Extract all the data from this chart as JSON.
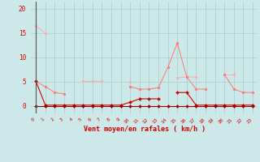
{
  "x": [
    0,
    1,
    2,
    3,
    4,
    5,
    6,
    7,
    8,
    9,
    10,
    11,
    12,
    13,
    14,
    15,
    16,
    17,
    18,
    19,
    20,
    21,
    22,
    23
  ],
  "line1_y": [
    16.5,
    15.0,
    null,
    null,
    null,
    5.2,
    5.2,
    5.2,
    null,
    null,
    5.0,
    null,
    null,
    null,
    null,
    5.8,
    6.0,
    6.0,
    null,
    null,
    6.5,
    6.5,
    null,
    null
  ],
  "line2_y": [
    5.1,
    4.0,
    2.8,
    2.5,
    null,
    null,
    null,
    null,
    null,
    null,
    4.0,
    3.5,
    3.5,
    3.8,
    8.0,
    13.0,
    6.0,
    3.5,
    3.5,
    null,
    6.5,
    3.5,
    2.8,
    2.8
  ],
  "line3_y": [
    5.1,
    0.2,
    0.2,
    0.2,
    0.2,
    0.2,
    0.2,
    0.2,
    0.2,
    0.2,
    0.8,
    1.5,
    1.5,
    1.5,
    null,
    2.8,
    2.8,
    0.2,
    0.2,
    0.2,
    0.2,
    0.2,
    0.2,
    0.2
  ],
  "line4_y": [
    0,
    0,
    0,
    0,
    0,
    0,
    0,
    0,
    0,
    0,
    0,
    0,
    0,
    0,
    0,
    0,
    0,
    0,
    0,
    0,
    0,
    0,
    0,
    0
  ],
  "color1": "#ffaaaa",
  "color2": "#ff7777",
  "color3": "#cc0000",
  "color4": "#990000",
  "bg_color": "#cce8e8",
  "grid_color": "#aacccc",
  "xlabel": "Vent moyen/en rafales ( km/h )",
  "xlabel_color": "#cc0000",
  "tick_color": "#cc0000",
  "yticks": [
    0,
    5,
    10,
    15,
    20
  ],
  "ylim": [
    -1.5,
    21.5
  ],
  "xlim": [
    -0.5,
    23.5
  ]
}
